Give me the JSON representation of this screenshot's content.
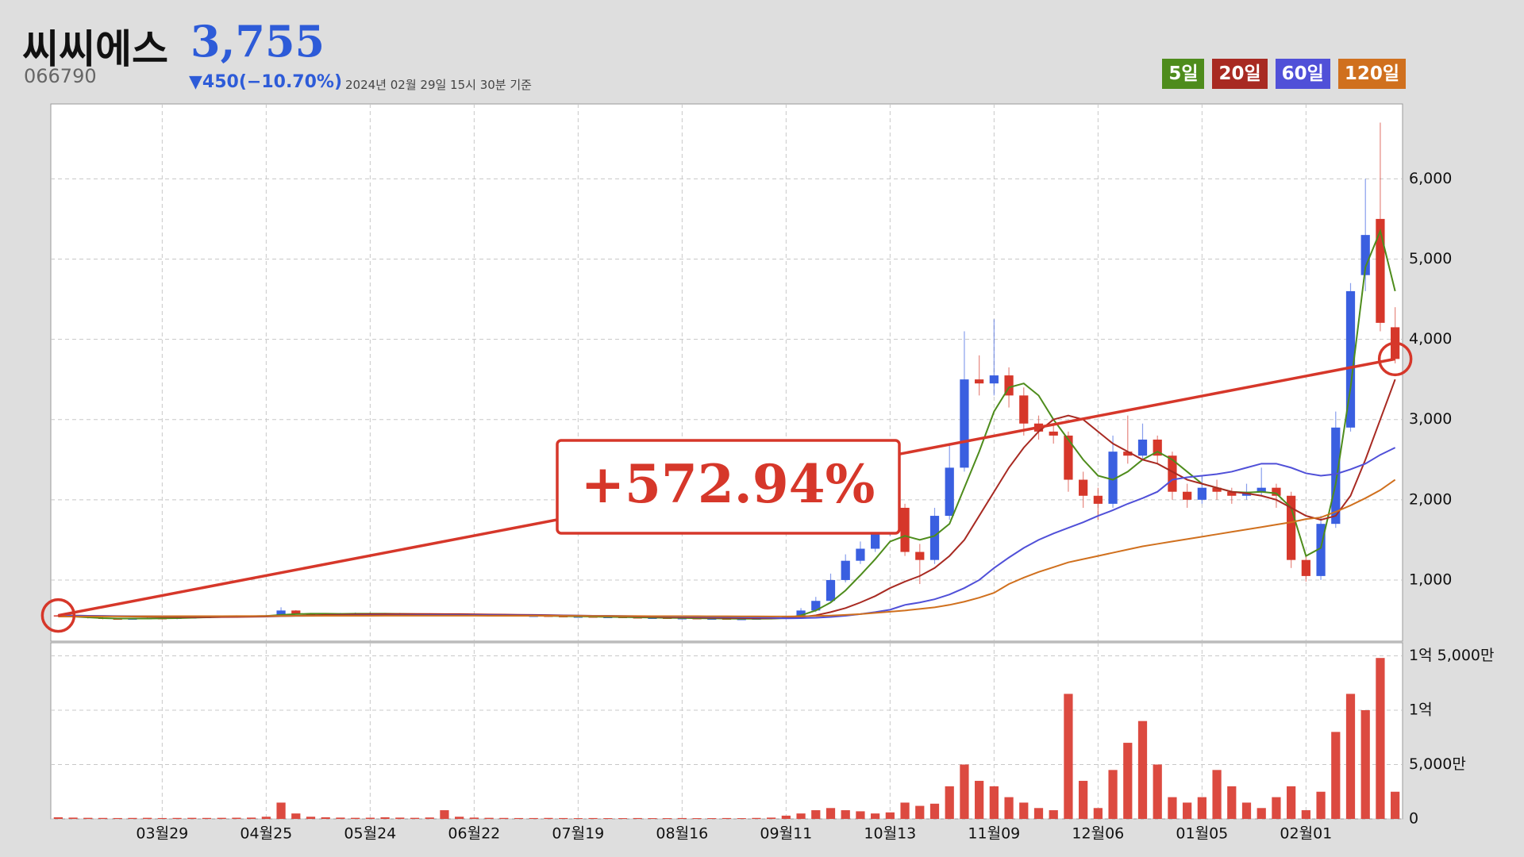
{
  "header": {
    "name": "씨씨에스",
    "price": "3,755",
    "code": "066790",
    "change": "▼450(−10.70%)",
    "timestamp": "2024년 02월 29일 15시 30분 기준"
  },
  "chart_data": {
    "type": "candlestick",
    "annotation": "+572.94%",
    "grid": true,
    "up_color": "#3a5fe0",
    "down_color": "#d6372a",
    "categories": [
      null,
      null,
      null,
      null,
      null,
      null,
      null,
      "03월29",
      null,
      null,
      null,
      null,
      null,
      null,
      "04월25",
      null,
      null,
      null,
      null,
      null,
      null,
      "05월24",
      null,
      null,
      null,
      null,
      null,
      null,
      "06월22",
      null,
      null,
      null,
      null,
      null,
      null,
      "07월19",
      null,
      null,
      null,
      null,
      null,
      null,
      "08월16",
      null,
      null,
      null,
      null,
      null,
      null,
      "09월11",
      null,
      null,
      null,
      null,
      null,
      null,
      "10월13",
      null,
      null,
      null,
      null,
      null,
      null,
      "11월09",
      null,
      null,
      null,
      null,
      null,
      null,
      "12월06",
      null,
      null,
      null,
      null,
      null,
      null,
      "01월05",
      null,
      null,
      null,
      null,
      null,
      null,
      "02월01",
      null,
      null,
      null,
      null,
      null,
      null
    ],
    "open": [
      560,
      558,
      545,
      530,
      520,
      515,
      520,
      525,
      520,
      530,
      535,
      540,
      545,
      550,
      550,
      555,
      620,
      580,
      570,
      575,
      580,
      585,
      580,
      580,
      575,
      575,
      570,
      570,
      565,
      565,
      560,
      560,
      555,
      555,
      550,
      545,
      545,
      540,
      540,
      535,
      530,
      530,
      525,
      525,
      520,
      520,
      515,
      515,
      520,
      525,
      540,
      620,
      740,
      1000,
      1240,
      1390,
      1580,
      1900,
      1350,
      1250,
      1800,
      2400,
      3500,
      3450,
      3550,
      3300,
      2950,
      2850,
      2800,
      2250,
      2050,
      1950,
      2600,
      2550,
      2750,
      2550,
      2100,
      2000,
      2150,
      2100,
      2050,
      2100,
      2150,
      2050,
      1250,
      1050,
      1700,
      2900,
      4800,
      5500,
      4150
    ],
    "high": [
      570,
      565,
      555,
      540,
      530,
      530,
      535,
      535,
      540,
      545,
      550,
      555,
      560,
      560,
      565,
      660,
      625,
      590,
      585,
      590,
      595,
      595,
      590,
      590,
      585,
      585,
      580,
      580,
      575,
      575,
      570,
      570,
      565,
      565,
      560,
      555,
      555,
      550,
      550,
      545,
      540,
      540,
      535,
      535,
      530,
      530,
      525,
      530,
      535,
      560,
      650,
      790,
      1080,
      1320,
      1480,
      1680,
      2050,
      1950,
      1450,
      1900,
      2700,
      4100,
      3800,
      4250,
      3650,
      3400,
      3050,
      2950,
      2850,
      2350,
      2150,
      2800,
      3050,
      2950,
      2800,
      2600,
      2200,
      2300,
      2250,
      2150,
      2200,
      2400,
      2200,
      2100,
      1300,
      1800,
      3100,
      4700,
      6000,
      6700,
      4400
    ],
    "low": [
      545,
      535,
      520,
      510,
      505,
      505,
      510,
      510,
      510,
      520,
      525,
      530,
      535,
      540,
      540,
      545,
      570,
      560,
      560,
      565,
      570,
      570,
      570,
      565,
      565,
      560,
      560,
      555,
      555,
      550,
      550,
      545,
      545,
      540,
      535,
      535,
      530,
      530,
      525,
      520,
      520,
      515,
      515,
      510,
      510,
      505,
      505,
      505,
      510,
      515,
      530,
      600,
      720,
      970,
      1200,
      1350,
      1550,
      1300,
      950,
      1200,
      1750,
      2350,
      3300,
      3300,
      3150,
      2800,
      2750,
      2700,
      2100,
      1900,
      1750,
      1900,
      2450,
      2500,
      2450,
      2000,
      1900,
      1950,
      2000,
      1950,
      2000,
      2050,
      1900,
      1150,
      980,
      1000,
      1650,
      2850,
      4600,
      4100,
      3700
    ],
    "close": [
      558,
      545,
      530,
      520,
      515,
      520,
      525,
      520,
      530,
      535,
      540,
      545,
      550,
      550,
      555,
      620,
      580,
      570,
      575,
      580,
      585,
      580,
      580,
      575,
      575,
      570,
      570,
      565,
      565,
      560,
      560,
      555,
      555,
      550,
      545,
      545,
      540,
      540,
      535,
      530,
      530,
      525,
      525,
      520,
      520,
      515,
      515,
      520,
      525,
      540,
      620,
      740,
      1000,
      1240,
      1390,
      1580,
      1900,
      1350,
      1250,
      1800,
      2400,
      3500,
      3450,
      3550,
      3300,
      2950,
      2850,
      2800,
      2250,
      2050,
      1950,
      2600,
      2550,
      2750,
      2550,
      2100,
      2000,
      2150,
      2100,
      2050,
      2100,
      2150,
      2050,
      1250,
      1050,
      1700,
      2900,
      4600,
      5300,
      4205,
      3755
    ],
    "ylim": [
      238,
      6933
    ],
    "yticks": [
      {
        "value": 1000,
        "label": "1,000"
      },
      {
        "value": 2000,
        "label": "2,000"
      },
      {
        "value": 3000,
        "label": "3,000"
      },
      {
        "value": 4000,
        "label": "4,000"
      },
      {
        "value": 5000,
        "label": "5,000"
      },
      {
        "value": 6000,
        "label": "6,000"
      }
    ],
    "series": [
      {
        "name": "5일",
        "color": "#4e8c1c",
        "values": [
          550,
          545,
          535,
          525,
          520,
          520,
          520,
          522,
          525,
          530,
          535,
          540,
          545,
          548,
          552,
          565,
          575,
          580,
          580,
          578,
          580,
          580,
          580,
          578,
          576,
          574,
          572,
          568,
          566,
          563,
          561,
          558,
          556,
          553,
          550,
          547,
          544,
          541,
          538,
          535,
          532,
          529,
          527,
          524,
          522,
          519,
          517,
          517,
          519,
          525,
          560,
          620,
          720,
          870,
          1060,
          1260,
          1480,
          1550,
          1500,
          1550,
          1700,
          2150,
          2600,
          3100,
          3400,
          3450,
          3300,
          3000,
          2750,
          2500,
          2300,
          2250,
          2350,
          2500,
          2600,
          2500,
          2350,
          2200,
          2150,
          2100,
          2090,
          2100,
          2080,
          1900,
          1300,
          1400,
          2200,
          3400,
          4900,
          5350,
          4600
        ]
      },
      {
        "name": "20일",
        "color": "#a82a22",
        "values": [
          560,
          558,
          555,
          552,
          548,
          545,
          542,
          540,
          538,
          537,
          537,
          538,
          540,
          542,
          545,
          550,
          555,
          560,
          565,
          568,
          572,
          574,
          576,
          577,
          577,
          577,
          576,
          575,
          573,
          571,
          569,
          567,
          565,
          563,
          560,
          557,
          554,
          551,
          548,
          545,
          542,
          539,
          536,
          533,
          530,
          528,
          526,
          524,
          523,
          525,
          540,
          560,
          600,
          650,
          720,
          800,
          900,
          980,
          1050,
          1150,
          1300,
          1500,
          1800,
          2100,
          2400,
          2650,
          2850,
          3000,
          3050,
          3000,
          2850,
          2700,
          2600,
          2500,
          2450,
          2350,
          2250,
          2200,
          2150,
          2100,
          2080,
          2050,
          2000,
          1900,
          1800,
          1750,
          1800,
          2050,
          2500,
          3000,
          3500
        ]
      },
      {
        "name": "60일",
        "color": "#5050d8",
        "values": [
          555,
          554,
          553,
          552,
          551,
          550,
          549,
          548,
          548,
          548,
          548,
          548,
          549,
          550,
          551,
          552,
          553,
          554,
          556,
          557,
          558,
          559,
          560,
          561,
          562,
          563,
          563,
          563,
          563,
          562,
          561,
          560,
          559,
          558,
          557,
          556,
          555,
          554,
          552,
          550,
          548,
          546,
          544,
          542,
          540,
          538,
          536,
          534,
          530,
          522,
          525,
          530,
          540,
          555,
          575,
          600,
          630,
          690,
          720,
          760,
          820,
          900,
          1000,
          1150,
          1280,
          1400,
          1500,
          1580,
          1650,
          1720,
          1800,
          1870,
          1950,
          2020,
          2100,
          2250,
          2280,
          2300,
          2320,
          2350,
          2400,
          2450,
          2450,
          2400,
          2330,
          2300,
          2320,
          2380,
          2450,
          2560,
          2650
        ]
      },
      {
        "name": "120일",
        "color": "#d0701e",
        "values": [
          545,
          545,
          546,
          546,
          547,
          547,
          548,
          548,
          549,
          549,
          550,
          550,
          551,
          551,
          552,
          552,
          553,
          553,
          554,
          554,
          555,
          555,
          556,
          556,
          556,
          556,
          556,
          556,
          556,
          555,
          555,
          555,
          554,
          554,
          553,
          553,
          552,
          552,
          551,
          551,
          550,
          550,
          549,
          549,
          548,
          548,
          547,
          547,
          546,
          546,
          548,
          552,
          557,
          565,
          575,
          590,
          605,
          620,
          640,
          660,
          690,
          730,
          780,
          840,
          950,
          1030,
          1100,
          1160,
          1220,
          1260,
          1300,
          1340,
          1380,
          1420,
          1450,
          1480,
          1510,
          1540,
          1570,
          1600,
          1630,
          1660,
          1690,
          1720,
          1760,
          1780,
          1850,
          1930,
          2020,
          2120,
          2250
        ]
      }
    ],
    "volume": {
      "color": "#dc4a40",
      "ylim": [
        0,
        162000000
      ],
      "yticks": [
        0,
        {
          "value": 50000000,
          "label": "5,000만"
        },
        {
          "value": 100000000,
          "label": "1억"
        },
        {
          "value": 150000000,
          "label": "1억 5,000만"
        }
      ],
      "values": [
        1500000,
        1200000,
        1000000,
        900000,
        800000,
        900000,
        1000000,
        800000,
        900000,
        1000000,
        900000,
        1000000,
        1100000,
        1200000,
        2000000,
        15000000,
        5000000,
        2000000,
        1500000,
        1200000,
        1000000,
        1100000,
        1500000,
        1200000,
        1000000,
        1300000,
        8000000,
        2000000,
        1200000,
        1000000,
        900000,
        800000,
        800000,
        900000,
        800000,
        700000,
        800000,
        700000,
        700000,
        800000,
        700000,
        700000,
        800000,
        700000,
        700000,
        800000,
        700000,
        900000,
        1200000,
        3000000,
        5000000,
        8000000,
        10000000,
        8000000,
        7000000,
        5000000,
        6000000,
        15000000,
        12000000,
        14000000,
        30000000,
        50000000,
        35000000,
        30000000,
        20000000,
        15000000,
        10000000,
        8000000,
        115000000,
        35000000,
        10000000,
        45000000,
        70000000,
        90000000,
        50000000,
        20000000,
        15000000,
        20000000,
        45000000,
        30000000,
        15000000,
        10000000,
        20000000,
        30000000,
        8000000,
        25000000,
        80000000,
        115000000,
        100000000,
        148000000,
        25000000
      ]
    }
  }
}
